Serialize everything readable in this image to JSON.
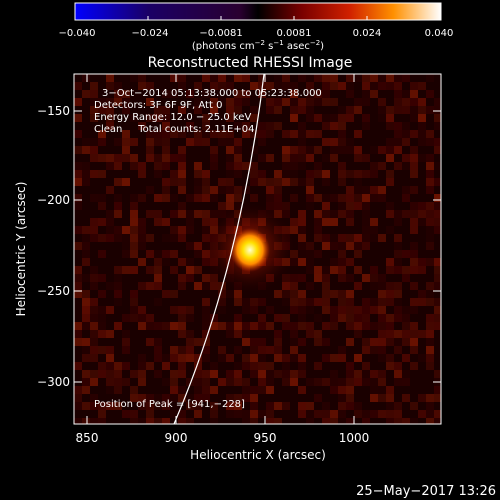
{
  "colorbar": {
    "ticks": [
      "−0.040",
      "−0.024",
      "−0.0081",
      "0.0081",
      "0.024",
      "0.040"
    ],
    "units_pre": "(photons cm",
    "units_exp1": "−2",
    "units_mid": " s",
    "units_exp2": "−1",
    "units_post": " asec",
    "units_exp3": "−2",
    "units_close": ")"
  },
  "title": "Reconstructed RHESSI Image",
  "info": {
    "time": "3−Oct−2014 05:13:38.000 to 05:23:38.000",
    "detectors": "Detectors: 3F 6F 9F, Att 0",
    "energy": "Energy Range: 12.0 − 25.0 keV",
    "clean": "Clean     Total counts: 2.11E+04"
  },
  "peak_label": "Position of Peak = [941,−228]",
  "axes": {
    "xlabel": "Heliocentric X (arcsec)",
    "ylabel": "Heliocentric Y (arcsec)",
    "x_ticks": [
      "850",
      "900",
      "950",
      "1000"
    ],
    "y_ticks": [
      "−150",
      "−200",
      "−250",
      "−300"
    ]
  },
  "footer_date": "25−May−2017 13:26"
}
